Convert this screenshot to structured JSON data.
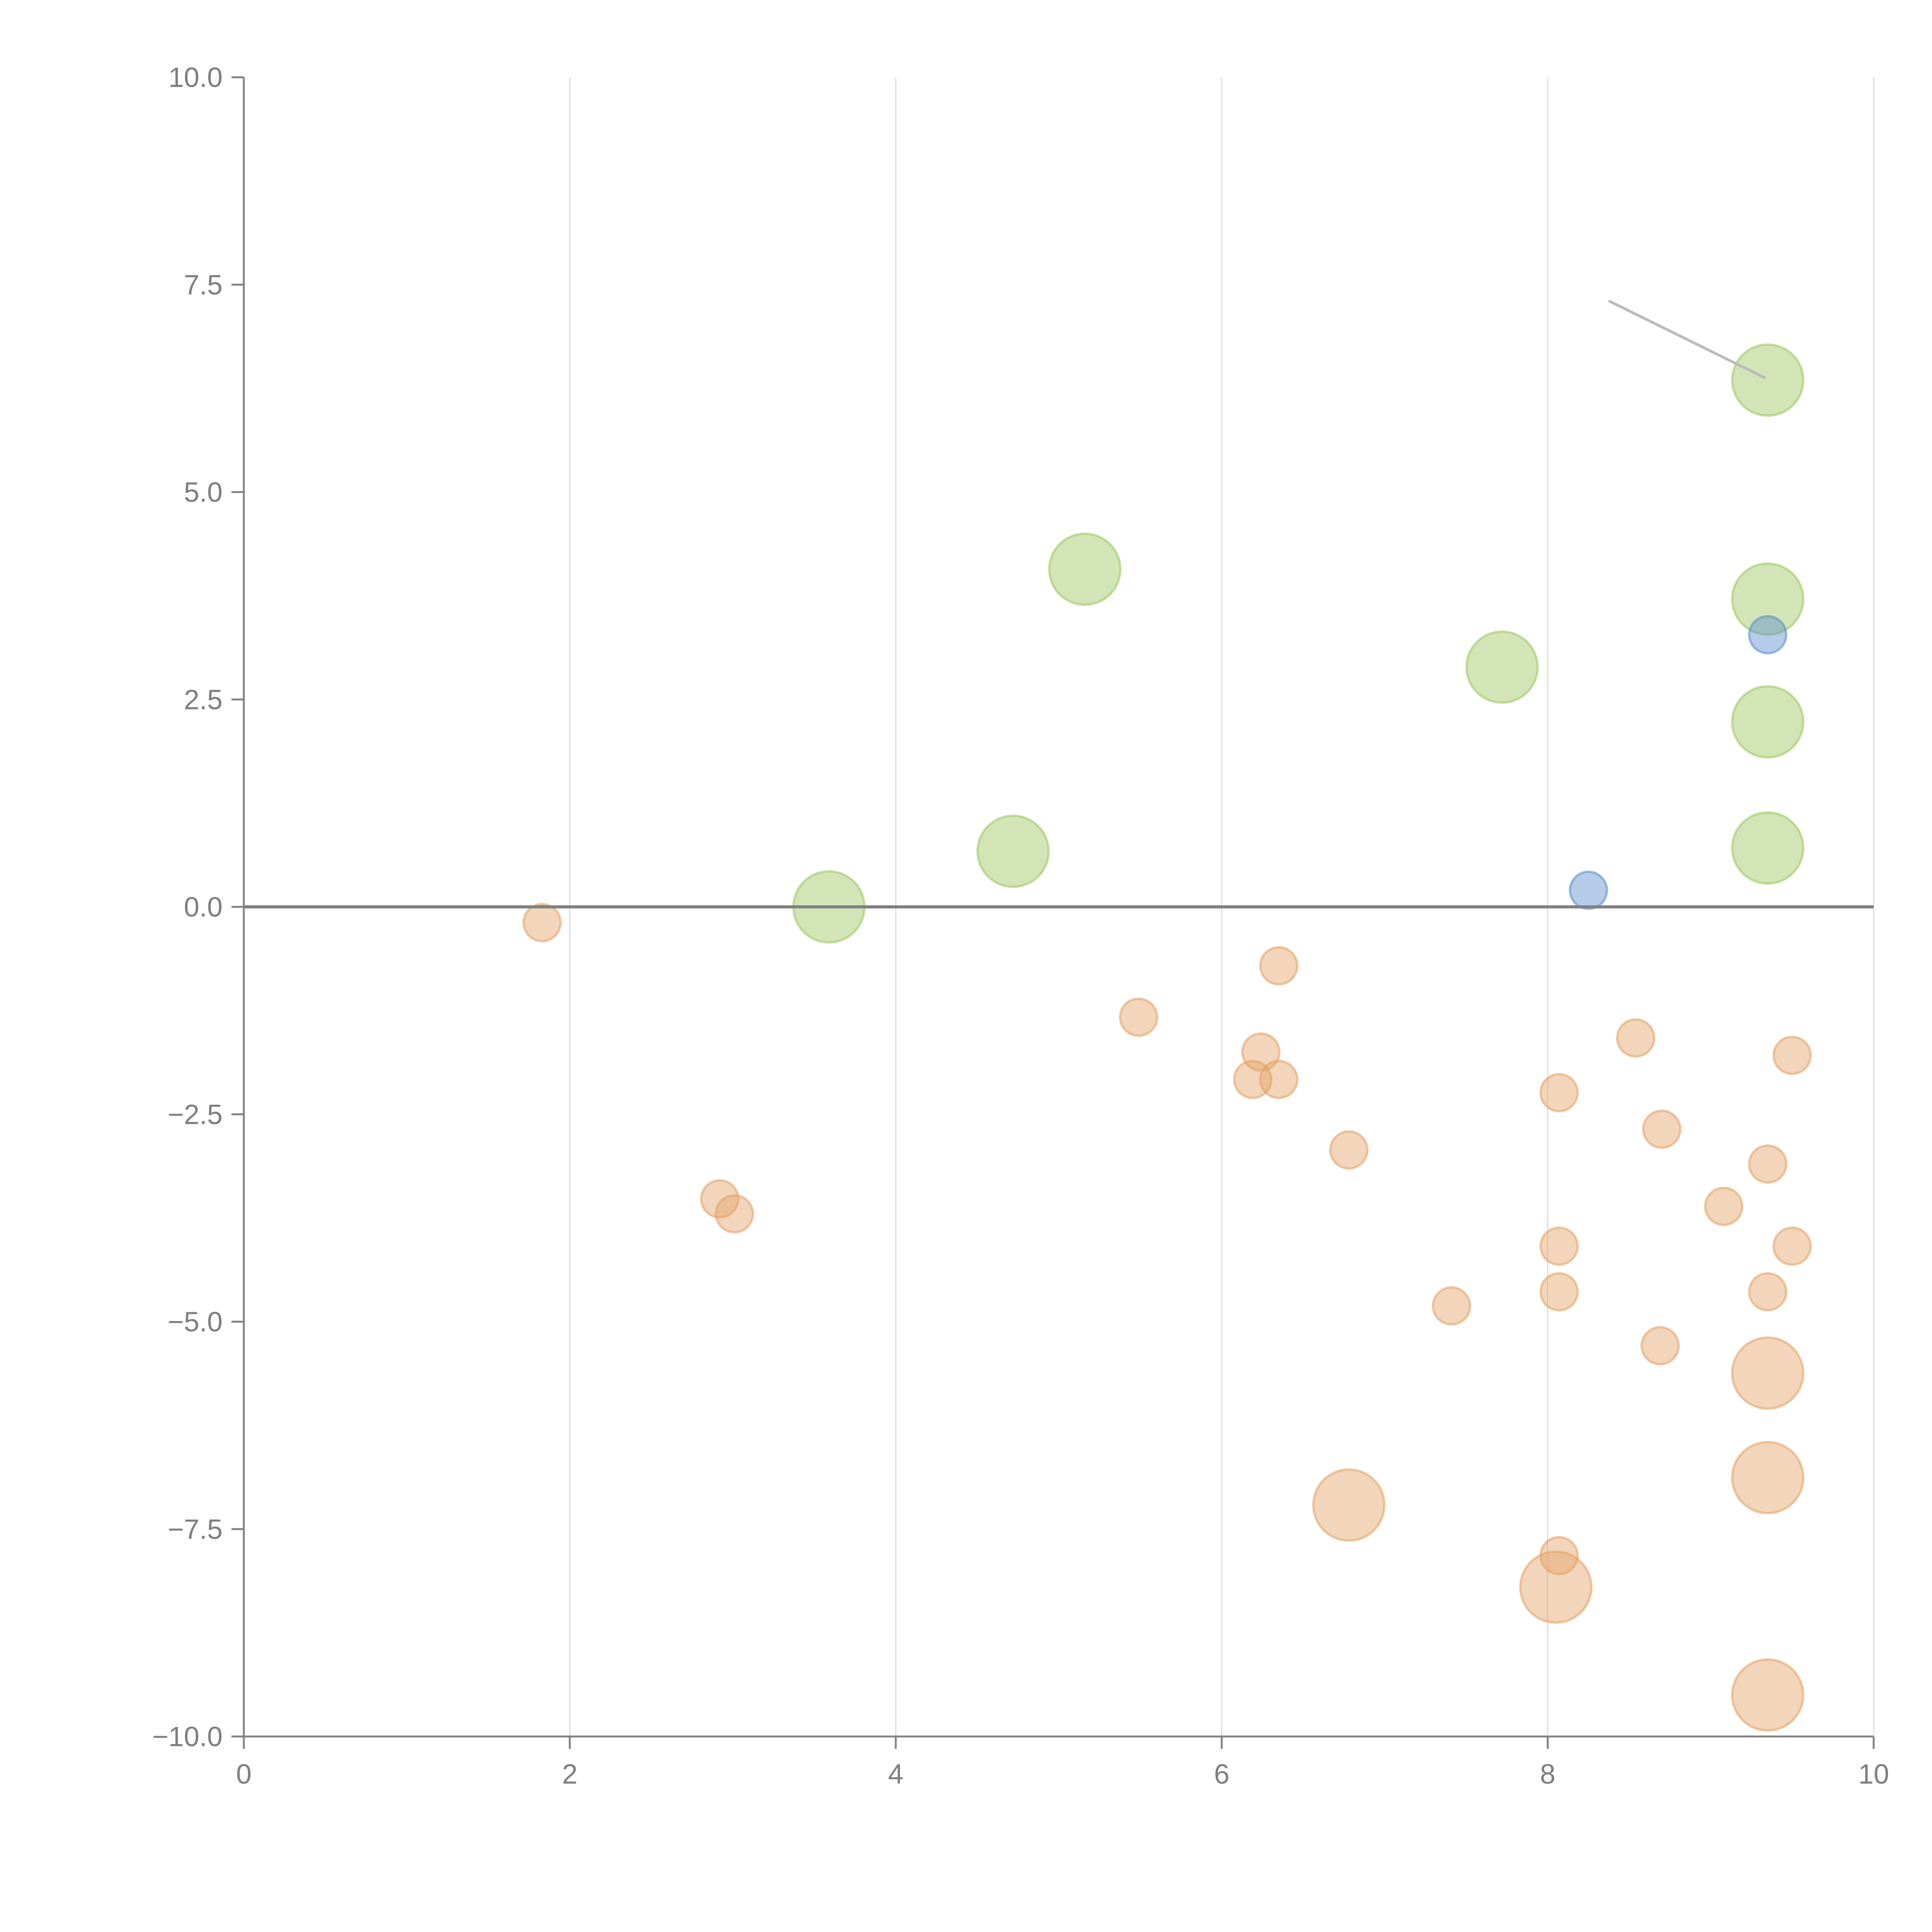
{
  "chart_data": {
    "type": "scatter",
    "subtype": "bubble",
    "title": "",
    "xlabel": "",
    "ylabel": "",
    "xlim": [
      0,
      10
    ],
    "ylim": [
      -10,
      10
    ],
    "xticks": [
      "0",
      "2",
      "4",
      "6",
      "8",
      "10"
    ],
    "xtick_values": [
      0,
      2,
      4,
      6,
      8,
      10
    ],
    "yticks": [
      "10.0",
      "7.5",
      "5.0",
      "2.5",
      "0.0",
      "−2.5",
      "−5.0",
      "−7.5",
      "−10.0"
    ],
    "ytick_values": [
      10,
      7.5,
      5,
      2.5,
      0,
      -2.5,
      -5,
      -7.5,
      -10
    ],
    "grid": "vertical",
    "zero_line": true,
    "legend": "none",
    "series": [
      {
        "name": "green",
        "color": "#9dc65f",
        "size": "large",
        "points": [
          {
            "x": 3.59,
            "y": 0.0
          },
          {
            "x": 4.72,
            "y": 0.67
          },
          {
            "x": 5.16,
            "y": 4.07
          },
          {
            "x": 7.72,
            "y": 2.89
          },
          {
            "x": 9.35,
            "y": 6.35
          },
          {
            "x": 9.35,
            "y": 3.71
          },
          {
            "x": 9.35,
            "y": 2.23
          },
          {
            "x": 9.35,
            "y": 0.71
          }
        ]
      },
      {
        "name": "blue",
        "color": "#5b8ccc",
        "size": "small",
        "points": [
          {
            "x": 8.25,
            "y": 0.2
          },
          {
            "x": 9.35,
            "y": 3.28
          }
        ]
      },
      {
        "name": "orange",
        "color": "#e3a165",
        "size": "small",
        "points": [
          {
            "x": 1.83,
            "y": -0.19
          },
          {
            "x": 2.92,
            "y": -3.52
          },
          {
            "x": 3.01,
            "y": -3.7
          },
          {
            "x": 5.49,
            "y": -1.33
          },
          {
            "x": 6.35,
            "y": -0.71
          },
          {
            "x": 6.24,
            "y": -1.75
          },
          {
            "x": 6.19,
            "y": -2.08
          },
          {
            "x": 6.35,
            "y": -2.08
          },
          {
            "x": 6.78,
            "y": -2.93
          },
          {
            "x": 7.41,
            "y": -4.81
          },
          {
            "x": 8.07,
            "y": -2.24
          },
          {
            "x": 8.07,
            "y": -4.09
          },
          {
            "x": 8.07,
            "y": -4.64
          },
          {
            "x": 8.07,
            "y": -7.82
          },
          {
            "x": 8.54,
            "y": -1.58
          },
          {
            "x": 8.7,
            "y": -2.68
          },
          {
            "x": 8.69,
            "y": -5.29
          },
          {
            "x": 9.08,
            "y": -3.61
          },
          {
            "x": 9.35,
            "y": -3.1
          },
          {
            "x": 9.35,
            "y": -4.64
          },
          {
            "x": 9.5,
            "y": -1.79
          },
          {
            "x": 9.5,
            "y": -4.09
          }
        ]
      },
      {
        "name": "orange-large",
        "color": "#e3a165",
        "size": "large",
        "points": [
          {
            "x": 6.78,
            "y": -7.21
          },
          {
            "x": 8.05,
            "y": -8.2
          },
          {
            "x": 9.35,
            "y": -5.62
          },
          {
            "x": 9.35,
            "y": -6.88
          },
          {
            "x": 9.35,
            "y": -9.5
          }
        ]
      }
    ],
    "annotations": [
      {
        "type": "leader-line",
        "color": "#bbbbbb",
        "from": {
          "x": 8.38,
          "y": 7.3
        },
        "to": {
          "x": 9.33,
          "y": 6.38
        }
      }
    ]
  }
}
